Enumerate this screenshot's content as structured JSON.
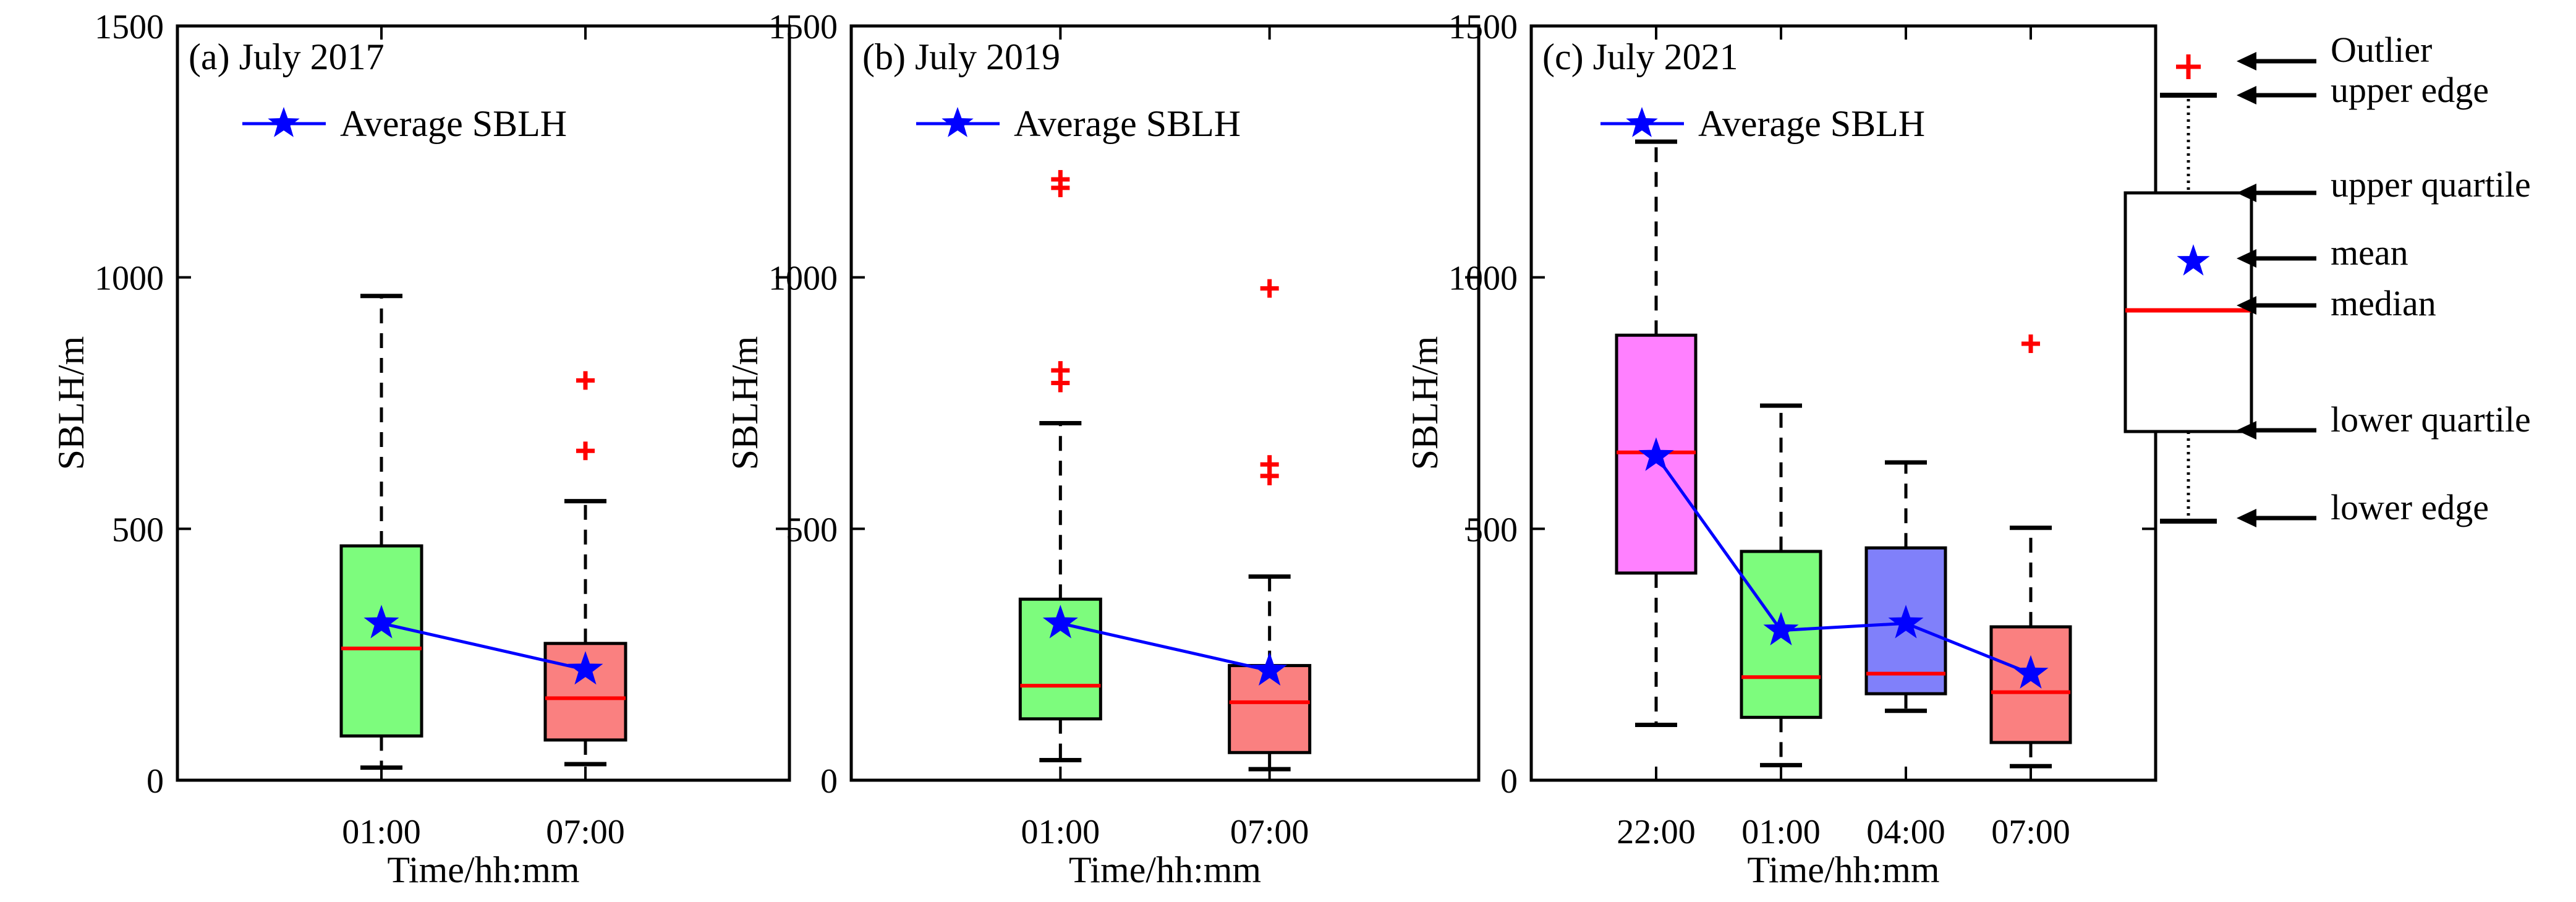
{
  "chart_data": [
    {
      "type": "box",
      "title": "(a) July 2017",
      "xlabel": "Time/hh:mm",
      "ylabel": "SBLH/m",
      "ylim": [
        0,
        1500
      ],
      "yticks": [
        "0",
        "500",
        "1000",
        "1500"
      ],
      "legend": "Average SBLH",
      "categories": [
        "01:00",
        "07:00"
      ],
      "boxes": [
        {
          "label": "01:00",
          "color": "#7dfc7d",
          "lower_edge": 25,
          "q1": 88,
          "median": 262,
          "q3": 466,
          "upper_edge": 963,
          "mean": 312,
          "outliers": []
        },
        {
          "label": "07:00",
          "color": "#fa8080",
          "lower_edge": 32,
          "q1": 80,
          "median": 163,
          "q3": 272,
          "upper_edge": 555,
          "mean": 220,
          "outliers": [
            655,
            795
          ]
        }
      ]
    },
    {
      "type": "box",
      "title": "(b) July 2019",
      "xlabel": "Time/hh:mm",
      "ylabel": "SBLH/m",
      "ylim": [
        0,
        1500
      ],
      "yticks": [
        "0",
        "500",
        "1000",
        "1500"
      ],
      "legend": "Average SBLH",
      "categories": [
        "01:00",
        "07:00"
      ],
      "boxes": [
        {
          "label": "01:00",
          "color": "#7dfc7d",
          "lower_edge": 40,
          "q1": 122,
          "median": 188,
          "q3": 360,
          "upper_edge": 710,
          "mean": 312,
          "outliers": [
            790,
            815,
            1178,
            1195
          ]
        },
        {
          "label": "07:00",
          "color": "#fa8080",
          "lower_edge": 22,
          "q1": 55,
          "median": 155,
          "q3": 228,
          "upper_edge": 405,
          "mean": 218,
          "outliers": [
            605,
            628,
            978
          ]
        }
      ]
    },
    {
      "type": "box",
      "title": "(c) July 2021",
      "xlabel": "Time/hh:mm",
      "ylabel": "SBLH/m",
      "ylim": [
        0,
        1500
      ],
      "yticks": [
        "0",
        "500",
        "1000",
        "1500"
      ],
      "legend": "Average SBLH",
      "categories": [
        "22:00",
        "01:00",
        "04:00",
        "07:00"
      ],
      "boxes": [
        {
          "label": "22:00",
          "color": "#ff80ff",
          "lower_edge": 110,
          "q1": 412,
          "median": 652,
          "q3": 885,
          "upper_edge": 1270,
          "mean": 645,
          "outliers": []
        },
        {
          "label": "01:00",
          "color": "#7dfc7d",
          "lower_edge": 30,
          "q1": 125,
          "median": 205,
          "q3": 455,
          "upper_edge": 745,
          "mean": 298,
          "outliers": []
        },
        {
          "label": "04:00",
          "color": "#8080fa",
          "lower_edge": 138,
          "q1": 172,
          "median": 212,
          "q3": 462,
          "upper_edge": 632,
          "mean": 312,
          "outliers": []
        },
        {
          "label": "07:00",
          "color": "#fa8080",
          "lower_edge": 28,
          "q1": 75,
          "median": 175,
          "q3": 305,
          "upper_edge": 502,
          "mean": 212,
          "outliers": [
            868
          ]
        }
      ]
    }
  ],
  "key": {
    "labels": [
      "Outlier",
      "upper edge",
      "upper quartile",
      "mean",
      "median",
      "lower quartile",
      "lower edge"
    ]
  },
  "colors": {
    "mean_line": "#0000ff",
    "median": "#ff0000",
    "outlier": "#ff0000"
  }
}
